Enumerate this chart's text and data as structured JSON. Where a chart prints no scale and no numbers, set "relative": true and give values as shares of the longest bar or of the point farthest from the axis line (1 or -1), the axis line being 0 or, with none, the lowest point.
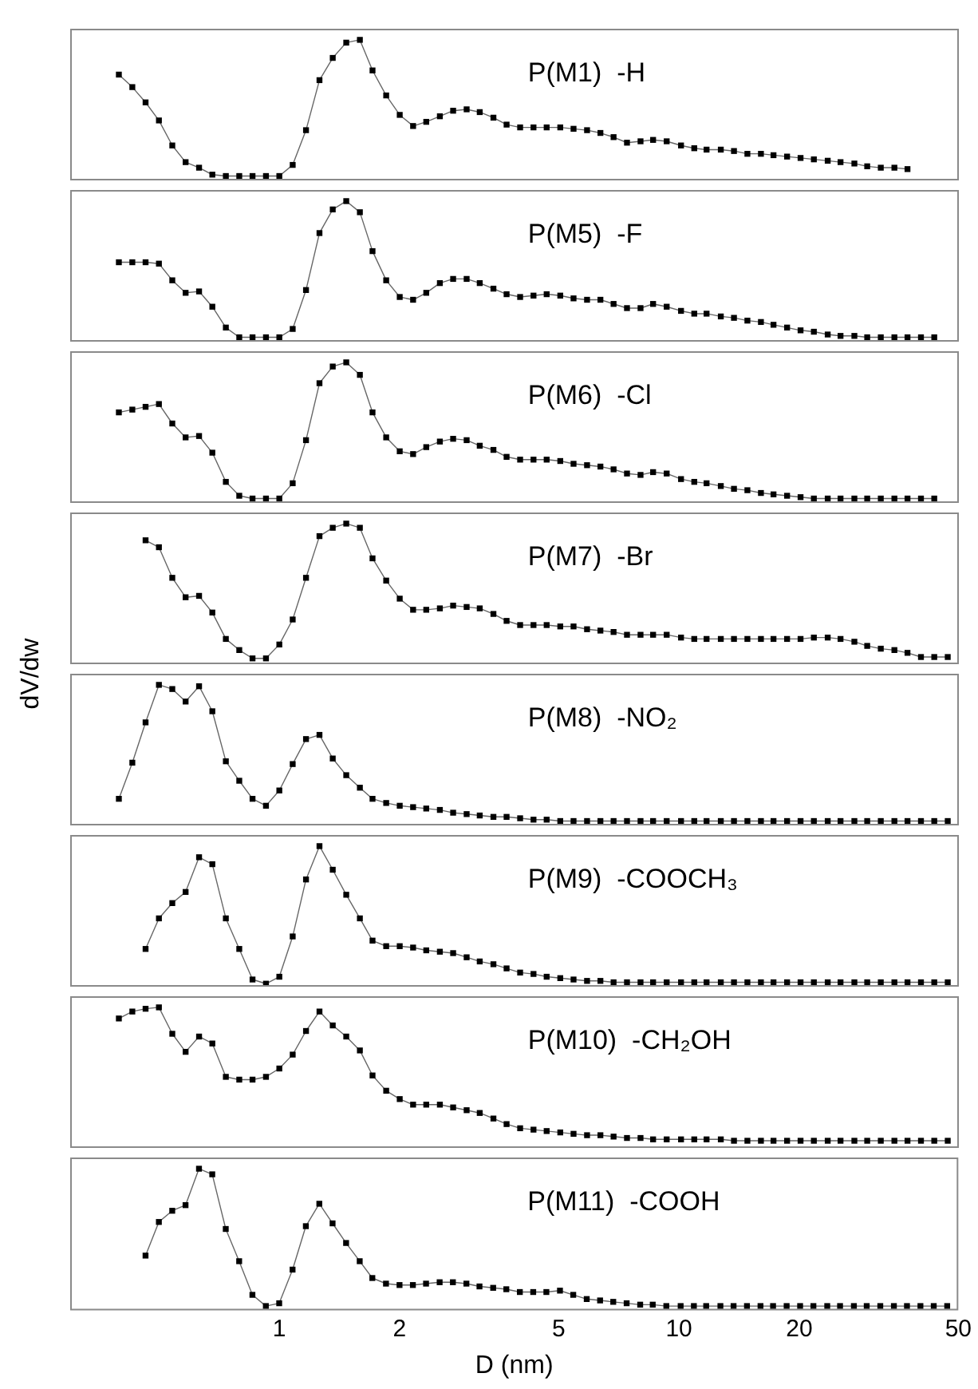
{
  "chart_data": [
    {
      "type": "line",
      "log": "x",
      "xlim": [
        0.3,
        50
      ],
      "relative": true,
      "marker": "square",
      "line_style": "solid",
      "tick_labels": false,
      "annotations": [
        "P(M1)  -H"
      ],
      "x": [
        0.397,
        0.429,
        0.463,
        0.5,
        0.54,
        0.583,
        0.63,
        0.68,
        0.735,
        0.794,
        0.857,
        0.926,
        1,
        1.08,
        1.166,
        1.26,
        1.36,
        1.47,
        1.59,
        1.71,
        1.85,
        2,
        2.16,
        2.33,
        2.52,
        2.72,
        2.94,
        3.17,
        3.43,
        3.7,
        4,
        4.32,
        4.66,
        5.04,
        5.44,
        5.88,
        6.35,
        6.85,
        7.4,
        8,
        8.6,
        9.3,
        10.1,
        10.9,
        11.7,
        12.7,
        13.7,
        14.8,
        16,
        17.2,
        18.6,
        20.1,
        21.7,
        23.5,
        25.3,
        27.4,
        29.5,
        31.9,
        34.5,
        37.2
      ],
      "series": [
        {
          "color": "#000000",
          "values": [
            0.75,
            0.66,
            0.55,
            0.42,
            0.24,
            0.12,
            0.08,
            0.03,
            0.02,
            0.02,
            0.02,
            0.02,
            0.02,
            0.1,
            0.35,
            0.71,
            0.87,
            0.98,
            1.0,
            0.78,
            0.6,
            0.46,
            0.38,
            0.41,
            0.45,
            0.49,
            0.5,
            0.48,
            0.44,
            0.39,
            0.37,
            0.37,
            0.37,
            0.37,
            0.36,
            0.35,
            0.33,
            0.3,
            0.26,
            0.27,
            0.28,
            0.27,
            0.24,
            0.22,
            0.21,
            0.21,
            0.2,
            0.18,
            0.18,
            0.17,
            0.16,
            0.15,
            0.14,
            0.13,
            0.12,
            0.11,
            0.09,
            0.08,
            0.08,
            0.07
          ]
        }
      ]
    },
    {
      "type": "line",
      "log": "x",
      "xlim": [
        0.3,
        50
      ],
      "relative": true,
      "marker": "square",
      "line_style": "solid",
      "tick_labels": false,
      "annotations": [
        "P(M5)  -F"
      ],
      "x": [
        0.397,
        0.429,
        0.463,
        0.5,
        0.54,
        0.583,
        0.63,
        0.68,
        0.735,
        0.794,
        0.857,
        0.926,
        1,
        1.08,
        1.166,
        1.26,
        1.36,
        1.47,
        1.59,
        1.71,
        1.85,
        2,
        2.16,
        2.33,
        2.52,
        2.72,
        2.94,
        3.17,
        3.43,
        3.7,
        4,
        4.32,
        4.66,
        5.04,
        5.44,
        5.88,
        6.35,
        6.85,
        7.4,
        8,
        8.6,
        9.3,
        10.1,
        10.9,
        11.7,
        12.7,
        13.7,
        14.8,
        16,
        17.2,
        18.6,
        20.1,
        21.7,
        23.5,
        25.3,
        27.4,
        29.5,
        31.9,
        34.5,
        37.2,
        40.2,
        43.4
      ],
      "series": [
        {
          "color": "#000000",
          "values": [
            0.56,
            0.56,
            0.56,
            0.55,
            0.43,
            0.34,
            0.35,
            0.24,
            0.09,
            0.02,
            0.02,
            0.02,
            0.02,
            0.08,
            0.36,
            0.77,
            0.94,
            1.0,
            0.92,
            0.64,
            0.43,
            0.31,
            0.29,
            0.34,
            0.41,
            0.44,
            0.44,
            0.41,
            0.37,
            0.33,
            0.31,
            0.32,
            0.33,
            0.32,
            0.3,
            0.29,
            0.29,
            0.26,
            0.23,
            0.23,
            0.26,
            0.24,
            0.21,
            0.19,
            0.19,
            0.17,
            0.16,
            0.14,
            0.13,
            0.11,
            0.09,
            0.07,
            0.06,
            0.04,
            0.03,
            0.03,
            0.02,
            0.02,
            0.02,
            0.02,
            0.02,
            0.02
          ]
        }
      ]
    },
    {
      "type": "line",
      "log": "x",
      "xlim": [
        0.3,
        50
      ],
      "relative": true,
      "marker": "square",
      "line_style": "solid",
      "tick_labels": false,
      "annotations": [
        "P(M6)  -Cl"
      ],
      "x": [
        0.397,
        0.429,
        0.463,
        0.5,
        0.54,
        0.583,
        0.63,
        0.68,
        0.735,
        0.794,
        0.857,
        0.926,
        1,
        1.08,
        1.166,
        1.26,
        1.36,
        1.47,
        1.59,
        1.71,
        1.85,
        2,
        2.16,
        2.33,
        2.52,
        2.72,
        2.94,
        3.17,
        3.43,
        3.7,
        4,
        4.32,
        4.66,
        5.04,
        5.44,
        5.88,
        6.35,
        6.85,
        7.4,
        8,
        8.6,
        9.3,
        10.1,
        10.9,
        11.7,
        12.7,
        13.7,
        14.8,
        16,
        17.2,
        18.6,
        20.1,
        21.7,
        23.5,
        25.3,
        27.4,
        29.5,
        31.9,
        34.5,
        37.2,
        40.2,
        43.4
      ],
      "series": [
        {
          "color": "#000000",
          "values": [
            0.64,
            0.66,
            0.68,
            0.7,
            0.56,
            0.46,
            0.47,
            0.35,
            0.14,
            0.04,
            0.02,
            0.02,
            0.02,
            0.13,
            0.44,
            0.85,
            0.97,
            1.0,
            0.91,
            0.64,
            0.46,
            0.36,
            0.34,
            0.39,
            0.43,
            0.45,
            0.44,
            0.4,
            0.37,
            0.32,
            0.3,
            0.3,
            0.3,
            0.29,
            0.27,
            0.26,
            0.25,
            0.23,
            0.2,
            0.19,
            0.21,
            0.2,
            0.16,
            0.14,
            0.13,
            0.11,
            0.09,
            0.08,
            0.06,
            0.05,
            0.04,
            0.03,
            0.02,
            0.02,
            0.02,
            0.02,
            0.02,
            0.02,
            0.02,
            0.02,
            0.02,
            0.02
          ]
        }
      ]
    },
    {
      "type": "line",
      "log": "x",
      "xlim": [
        0.3,
        50
      ],
      "relative": true,
      "marker": "square",
      "line_style": "solid",
      "tick_labels": false,
      "ylabel": "dV/dw",
      "annotations": [
        "P(M7)  -Br"
      ],
      "x": [
        0.463,
        0.5,
        0.54,
        0.583,
        0.63,
        0.68,
        0.735,
        0.794,
        0.857,
        0.926,
        1,
        1.08,
        1.166,
        1.26,
        1.36,
        1.47,
        1.59,
        1.71,
        1.85,
        2,
        2.16,
        2.33,
        2.52,
        2.72,
        2.94,
        3.17,
        3.43,
        3.7,
        4,
        4.32,
        4.66,
        5.04,
        5.44,
        5.88,
        6.35,
        6.85,
        7.4,
        8,
        8.6,
        9.3,
        10.1,
        10.9,
        11.7,
        12.7,
        13.7,
        14.8,
        16,
        17.2,
        18.6,
        20.1,
        21.7,
        23.5,
        25.3,
        27.4,
        29.5,
        31.9,
        34.5,
        37.2,
        40.2,
        43.4,
        46.9
      ],
      "series": [
        {
          "color": "#000000",
          "values": [
            0.88,
            0.83,
            0.61,
            0.47,
            0.48,
            0.36,
            0.17,
            0.09,
            0.03,
            0.03,
            0.13,
            0.31,
            0.61,
            0.91,
            0.97,
            1.0,
            0.97,
            0.75,
            0.59,
            0.46,
            0.38,
            0.38,
            0.39,
            0.41,
            0.4,
            0.39,
            0.35,
            0.3,
            0.27,
            0.27,
            0.27,
            0.26,
            0.26,
            0.24,
            0.23,
            0.22,
            0.2,
            0.2,
            0.2,
            0.2,
            0.18,
            0.17,
            0.17,
            0.17,
            0.17,
            0.17,
            0.17,
            0.17,
            0.17,
            0.17,
            0.18,
            0.18,
            0.17,
            0.15,
            0.12,
            0.1,
            0.09,
            0.07,
            0.04,
            0.04,
            0.04
          ]
        }
      ]
    },
    {
      "type": "line",
      "log": "x",
      "xlim": [
        0.3,
        50
      ],
      "relative": true,
      "marker": "square",
      "line_style": "solid",
      "tick_labels": false,
      "annotations": [
        "P(M8)  -NO₂"
      ],
      "x": [
        0.397,
        0.429,
        0.463,
        0.5,
        0.54,
        0.583,
        0.63,
        0.68,
        0.735,
        0.794,
        0.857,
        0.926,
        1,
        1.08,
        1.166,
        1.26,
        1.36,
        1.47,
        1.59,
        1.71,
        1.85,
        2,
        2.16,
        2.33,
        2.52,
        2.72,
        2.94,
        3.17,
        3.43,
        3.7,
        4,
        4.32,
        4.66,
        5.04,
        5.44,
        5.88,
        6.35,
        6.85,
        7.4,
        8,
        8.6,
        9.3,
        10.1,
        10.9,
        11.7,
        12.7,
        13.7,
        14.8,
        16,
        17.2,
        18.6,
        20.1,
        21.7,
        23.5,
        25.3,
        27.4,
        29.5,
        31.9,
        34.5,
        37.2,
        40.2,
        43.4,
        46.9
      ],
      "series": [
        {
          "color": "#000000",
          "values": [
            0.18,
            0.44,
            0.73,
            1.0,
            0.97,
            0.88,
            0.99,
            0.81,
            0.45,
            0.31,
            0.18,
            0.13,
            0.24,
            0.43,
            0.61,
            0.64,
            0.47,
            0.35,
            0.26,
            0.18,
            0.15,
            0.13,
            0.12,
            0.11,
            0.1,
            0.08,
            0.07,
            0.06,
            0.05,
            0.05,
            0.04,
            0.03,
            0.03,
            0.02,
            0.02,
            0.02,
            0.02,
            0.02,
            0.02,
            0.02,
            0.02,
            0.02,
            0.02,
            0.02,
            0.02,
            0.02,
            0.02,
            0.02,
            0.02,
            0.02,
            0.02,
            0.02,
            0.02,
            0.02,
            0.02,
            0.02,
            0.02,
            0.02,
            0.02,
            0.02,
            0.02,
            0.02,
            0.02
          ]
        }
      ]
    },
    {
      "type": "line",
      "log": "x",
      "xlim": [
        0.3,
        50
      ],
      "relative": true,
      "marker": "square",
      "line_style": "solid",
      "tick_labels": false,
      "annotations": [
        "P(M9)  -COOCH₃"
      ],
      "x": [
        0.463,
        0.5,
        0.54,
        0.583,
        0.63,
        0.68,
        0.735,
        0.794,
        0.857,
        0.926,
        1,
        1.08,
        1.166,
        1.26,
        1.36,
        1.47,
        1.59,
        1.71,
        1.85,
        2,
        2.16,
        2.33,
        2.52,
        2.72,
        2.94,
        3.17,
        3.43,
        3.7,
        4,
        4.32,
        4.66,
        5.04,
        5.44,
        5.88,
        6.35,
        6.85,
        7.4,
        8,
        8.6,
        9.3,
        10.1,
        10.9,
        11.7,
        12.7,
        13.7,
        14.8,
        16,
        17.2,
        18.6,
        20.1,
        21.7,
        23.5,
        25.3,
        27.4,
        29.5,
        31.9,
        34.5,
        37.2,
        40.2,
        43.4,
        46.9
      ],
      "series": [
        {
          "color": "#000000",
          "values": [
            0.26,
            0.48,
            0.59,
            0.67,
            0.92,
            0.87,
            0.48,
            0.26,
            0.04,
            0.01,
            0.06,
            0.35,
            0.76,
            1.0,
            0.83,
            0.65,
            0.48,
            0.32,
            0.28,
            0.28,
            0.27,
            0.25,
            0.24,
            0.23,
            0.2,
            0.17,
            0.15,
            0.12,
            0.09,
            0.08,
            0.06,
            0.05,
            0.04,
            0.03,
            0.03,
            0.02,
            0.02,
            0.02,
            0.02,
            0.02,
            0.02,
            0.02,
            0.02,
            0.02,
            0.02,
            0.02,
            0.02,
            0.02,
            0.02,
            0.02,
            0.02,
            0.02,
            0.02,
            0.02,
            0.02,
            0.02,
            0.02,
            0.02,
            0.02,
            0.02,
            0.02
          ]
        }
      ]
    },
    {
      "type": "line",
      "log": "x",
      "xlim": [
        0.3,
        50
      ],
      "relative": true,
      "marker": "square",
      "line_style": "solid",
      "tick_labels": false,
      "annotations": [
        "P(M10)  -CH₂OH"
      ],
      "x": [
        0.397,
        0.429,
        0.463,
        0.5,
        0.54,
        0.583,
        0.63,
        0.68,
        0.735,
        0.794,
        0.857,
        0.926,
        1,
        1.08,
        1.166,
        1.26,
        1.36,
        1.47,
        1.59,
        1.71,
        1.85,
        2,
        2.16,
        2.33,
        2.52,
        2.72,
        2.94,
        3.17,
        3.43,
        3.7,
        4,
        4.32,
        4.66,
        5.04,
        5.44,
        5.88,
        6.35,
        6.85,
        7.4,
        8,
        8.6,
        9.3,
        10.1,
        10.9,
        11.7,
        12.7,
        13.7,
        14.8,
        16,
        17.2,
        18.6,
        20.1,
        21.7,
        23.5,
        25.3,
        27.4,
        29.5,
        31.9,
        34.5,
        37.2,
        40.2,
        43.4,
        46.9
      ],
      "series": [
        {
          "color": "#000000",
          "values": [
            0.92,
            0.97,
            0.99,
            1.0,
            0.81,
            0.68,
            0.79,
            0.74,
            0.5,
            0.48,
            0.48,
            0.5,
            0.56,
            0.66,
            0.83,
            0.97,
            0.87,
            0.79,
            0.69,
            0.51,
            0.4,
            0.34,
            0.3,
            0.3,
            0.3,
            0.28,
            0.26,
            0.24,
            0.2,
            0.16,
            0.13,
            0.12,
            0.11,
            0.1,
            0.09,
            0.08,
            0.08,
            0.07,
            0.06,
            0.06,
            0.05,
            0.05,
            0.05,
            0.05,
            0.05,
            0.05,
            0.04,
            0.04,
            0.04,
            0.04,
            0.04,
            0.04,
            0.04,
            0.04,
            0.04,
            0.04,
            0.04,
            0.04,
            0.04,
            0.04,
            0.04,
            0.04,
            0.04
          ]
        }
      ]
    },
    {
      "type": "line",
      "log": "x",
      "xlim": [
        0.3,
        50
      ],
      "xticks": [
        1,
        2,
        5,
        10,
        20,
        50
      ],
      "relative": true,
      "marker": "square",
      "line_style": "solid",
      "tick_labels": "x",
      "xlabel": "D (nm)",
      "annotations": [
        "P(M11)  -COOH"
      ],
      "x": [
        0.463,
        0.5,
        0.54,
        0.583,
        0.63,
        0.68,
        0.735,
        0.794,
        0.857,
        0.926,
        1,
        1.08,
        1.166,
        1.26,
        1.36,
        1.47,
        1.59,
        1.71,
        1.85,
        2,
        2.16,
        2.33,
        2.52,
        2.72,
        2.94,
        3.17,
        3.43,
        3.7,
        4,
        4.32,
        4.66,
        5.04,
        5.44,
        5.88,
        6.35,
        6.85,
        7.4,
        8,
        8.6,
        9.3,
        10.1,
        10.9,
        11.7,
        12.7,
        13.7,
        14.8,
        16,
        17.2,
        18.6,
        20.1,
        21.7,
        23.5,
        25.3,
        27.4,
        29.5,
        31.9,
        34.5,
        37.2,
        40.2,
        43.4,
        46.9
      ],
      "series": [
        {
          "color": "#000000",
          "values": [
            0.38,
            0.62,
            0.7,
            0.74,
            1.0,
            0.96,
            0.57,
            0.34,
            0.1,
            0.02,
            0.04,
            0.28,
            0.59,
            0.75,
            0.61,
            0.47,
            0.34,
            0.22,
            0.18,
            0.17,
            0.17,
            0.18,
            0.19,
            0.19,
            0.18,
            0.16,
            0.15,
            0.14,
            0.12,
            0.12,
            0.12,
            0.13,
            0.1,
            0.07,
            0.06,
            0.05,
            0.04,
            0.03,
            0.03,
            0.02,
            0.02,
            0.02,
            0.02,
            0.02,
            0.02,
            0.02,
            0.02,
            0.02,
            0.02,
            0.02,
            0.02,
            0.02,
            0.02,
            0.02,
            0.02,
            0.02,
            0.02,
            0.02,
            0.02,
            0.02,
            0.02
          ]
        }
      ]
    }
  ]
}
